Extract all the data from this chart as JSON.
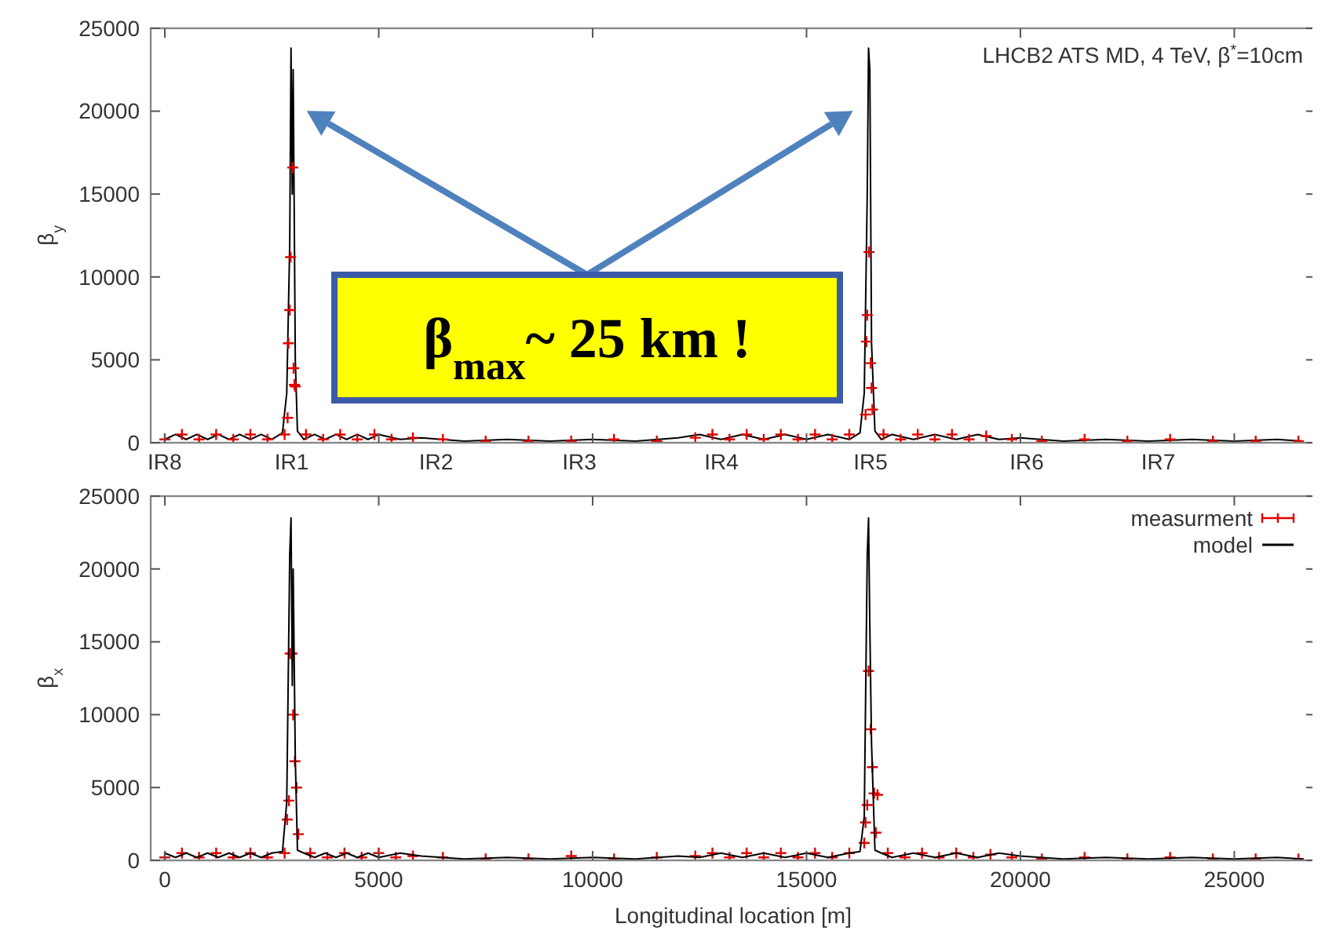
{
  "chart_data": [
    {
      "type": "line",
      "ylabel": "β$_{y}$",
      "xlim": [
        -330,
        26900
      ],
      "ylim": [
        0,
        25000
      ],
      "yticks": [
        0,
        5000,
        10000,
        15000,
        20000,
        25000
      ],
      "xticks": [
        0,
        5000,
        10000,
        15000,
        20000,
        25000
      ],
      "tick_labels": "y",
      "annotations": [
        "LHCB2 ATS MD, 4 TeV, β$^{*}$=10cm",
        "β$_{max}$~ 25 km !",
        "IR8",
        "IR1",
        "IR2",
        "IR3",
        "IR4",
        "IR5",
        "IR6",
        "IR7"
      ],
      "series": [
        {
          "color": "#000000",
          "marker": "none",
          "x": [
            0,
            250,
            500,
            750,
            1000,
            1250,
            1500,
            1750,
            2000,
            2250,
            2500,
            2750,
            2850,
            2920,
            2950,
            2980,
            3000,
            3050,
            3100,
            3250,
            3500,
            3750,
            4000,
            4250,
            4500,
            4750,
            5000,
            5500,
            6000,
            7000,
            8000,
            9000,
            10000,
            11000,
            12000,
            12500,
            13000,
            13500,
            14000,
            14500,
            15000,
            15500,
            16000,
            16250,
            16350,
            16420,
            16450,
            16480,
            16520,
            16600,
            16750,
            17000,
            17500,
            18000,
            18500,
            19000,
            19500,
            20000,
            21000,
            22000,
            23000,
            24000,
            25000,
            26000,
            26600
          ],
          "values": [
            200,
            500,
            200,
            500,
            200,
            500,
            200,
            500,
            200,
            500,
            200,
            600,
            3000,
            12000,
            23800,
            15000,
            22500,
            5000,
            700,
            200,
            500,
            200,
            500,
            200,
            500,
            200,
            500,
            200,
            300,
            100,
            200,
            100,
            200,
            100,
            300,
            500,
            200,
            500,
            200,
            500,
            200,
            500,
            200,
            600,
            3000,
            15000,
            23800,
            22500,
            6000,
            700,
            200,
            500,
            200,
            500,
            200,
            500,
            200,
            300,
            100,
            200,
            100,
            200,
            100,
            200,
            100
          ]
        },
        {
          "type": "scatter",
          "color": "#e00000",
          "marker": "cross",
          "x": [
            0,
            400,
            800,
            1200,
            1600,
            2000,
            2400,
            2800,
            2870,
            2890,
            2920,
            2940,
            2990,
            3010,
            3030,
            3050,
            3300,
            3700,
            4100,
            4500,
            4900,
            5300,
            5800,
            6500,
            7500,
            8500,
            9500,
            10500,
            11500,
            12400,
            12800,
            13200,
            13600,
            14000,
            14400,
            14800,
            15200,
            15600,
            16000,
            16380,
            16400,
            16420,
            16460,
            16500,
            16520,
            16540,
            16800,
            17200,
            17600,
            18000,
            18400,
            18800,
            19200,
            19800,
            20500,
            21500,
            22500,
            23500,
            24500,
            25500,
            26500
          ],
          "values": [
            200,
            500,
            200,
            500,
            200,
            500,
            200,
            500,
            1500,
            6000,
            8000,
            11200,
            16600,
            4500,
            3500,
            3400,
            500,
            200,
            500,
            200,
            500,
            200,
            300,
            200,
            100,
            100,
            100,
            200,
            100,
            300,
            500,
            200,
            500,
            200,
            500,
            200,
            500,
            200,
            500,
            1700,
            6100,
            7700,
            11500,
            4800,
            3300,
            2000,
            500,
            200,
            500,
            200,
            500,
            200,
            400,
            200,
            100,
            200,
            100,
            200,
            100,
            100,
            100
          ]
        }
      ]
    },
    {
      "type": "line",
      "ylabel": "β$_{x}$",
      "xlabel": "Longitudinal location [m]",
      "xlim": [
        -330,
        26900
      ],
      "ylim": [
        0,
        25000
      ],
      "yticks": [
        0,
        5000,
        10000,
        15000,
        20000,
        25000
      ],
      "xticks": [
        0,
        5000,
        10000,
        15000,
        20000,
        25000
      ],
      "legend": "top right",
      "series": [
        {
          "name": "measurment",
          "type": "scatter",
          "color": "#e00000",
          "marker": "cross",
          "x": [
            0,
            400,
            800,
            1200,
            1600,
            2000,
            2400,
            2800,
            2860,
            2900,
            2930,
            2970,
            3000,
            3040,
            3080,
            3120,
            3400,
            3800,
            4200,
            4600,
            5000,
            5400,
            5800,
            6500,
            7500,
            8500,
            9500,
            10500,
            11500,
            12400,
            12800,
            13200,
            13600,
            14000,
            14400,
            14800,
            15200,
            15600,
            16000,
            16350,
            16380,
            16420,
            16450,
            16500,
            16540,
            16580,
            16620,
            16660,
            16900,
            17300,
            17700,
            18100,
            18500,
            18900,
            19300,
            19800,
            20500,
            21500,
            22500,
            23500,
            24500,
            25500,
            26500
          ],
          "values": [
            200,
            500,
            200,
            500,
            200,
            500,
            200,
            500,
            2800,
            4100,
            14200,
            14200,
            10000,
            6800,
            5000,
            1800,
            500,
            200,
            500,
            200,
            500,
            200,
            300,
            200,
            100,
            100,
            300,
            100,
            200,
            300,
            500,
            200,
            500,
            200,
            500,
            200,
            500,
            200,
            500,
            1200,
            2600,
            3800,
            13000,
            9000,
            6400,
            4600,
            1900,
            4500,
            500,
            200,
            500,
            200,
            500,
            200,
            400,
            200,
            100,
            200,
            100,
            200,
            100,
            100,
            100
          ]
        },
        {
          "name": "model",
          "color": "#000000",
          "marker": "none",
          "x": [
            0,
            250,
            500,
            750,
            1000,
            1250,
            1500,
            1750,
            2000,
            2250,
            2500,
            2750,
            2850,
            2920,
            2950,
            2980,
            3000,
            3050,
            3100,
            3250,
            3500,
            3750,
            4000,
            4250,
            4500,
            4750,
            5000,
            5500,
            6000,
            7000,
            8000,
            9000,
            10000,
            11000,
            12000,
            12500,
            13000,
            13500,
            14000,
            14500,
            15000,
            15500,
            16000,
            16250,
            16350,
            16420,
            16450,
            16480,
            16520,
            16600,
            16750,
            17000,
            17500,
            18000,
            18500,
            19000,
            19500,
            20000,
            21000,
            22000,
            23000,
            24000,
            25000,
            26000,
            26600
          ],
          "values": [
            500,
            200,
            500,
            200,
            500,
            200,
            500,
            200,
            500,
            200,
            500,
            600,
            4000,
            21000,
            23500,
            12000,
            20000,
            7000,
            700,
            500,
            200,
            500,
            200,
            500,
            200,
            500,
            200,
            500,
            300,
            100,
            200,
            100,
            200,
            100,
            300,
            200,
            500,
            200,
            500,
            200,
            500,
            200,
            500,
            600,
            3000,
            21000,
            23500,
            16000,
            8000,
            700,
            500,
            200,
            500,
            200,
            500,
            200,
            500,
            300,
            100,
            200,
            100,
            200,
            100,
            200,
            100
          ]
        }
      ]
    }
  ]
}
